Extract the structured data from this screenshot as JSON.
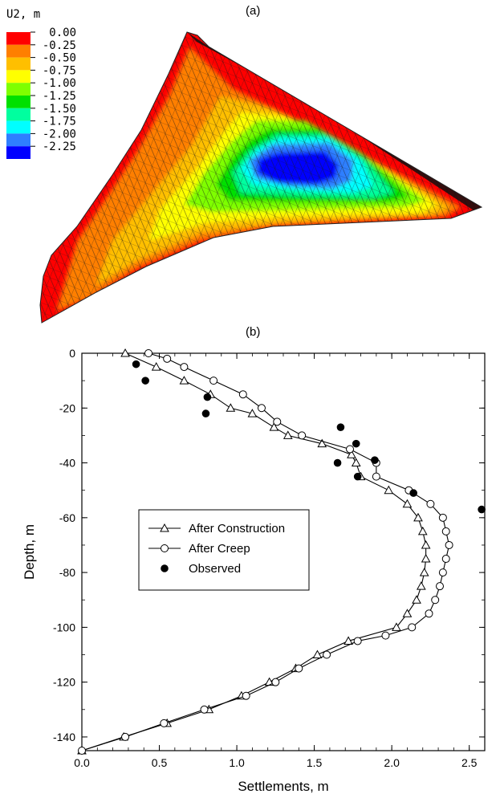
{
  "panel_a": {
    "label": "(a)",
    "legend_title": "U2, m",
    "contour_levels": [
      "0.00",
      "-0.25",
      "-0.50",
      "-0.75",
      "-1.00",
      "-1.25",
      "-1.50",
      "-1.75",
      "-2.00",
      "-2.25"
    ],
    "contour_colors": [
      "#ff0000",
      "#ff7f00",
      "#ffbf00",
      "#ffff00",
      "#7fff00",
      "#00e000",
      "#00ff9f",
      "#00ffff",
      "#2f7fff",
      "#0000ff"
    ]
  },
  "panel_b": {
    "label": "(b)"
  },
  "chart_data": {
    "type": "line",
    "xlabel": "Settlements, m",
    "ylabel": "Depth, m",
    "xlim": [
      0.0,
      2.6
    ],
    "ylim": [
      -145,
      0
    ],
    "x_ticks": [
      "0.0",
      "0.5",
      "1.0",
      "1.5",
      "2.0",
      "2.5"
    ],
    "y_ticks": [
      "0",
      "-20",
      "-40",
      "-60",
      "-80",
      "-100",
      "-120",
      "-140"
    ],
    "legend_position": "center-left",
    "series": [
      {
        "name": "After Construction",
        "marker": "open-triangle",
        "points": [
          [
            0.28,
            0
          ],
          [
            0.48,
            -5
          ],
          [
            0.66,
            -10
          ],
          [
            0.83,
            -15
          ],
          [
            0.96,
            -20
          ],
          [
            1.1,
            -22
          ],
          [
            1.24,
            -27
          ],
          [
            1.33,
            -30
          ],
          [
            1.55,
            -33
          ],
          [
            1.74,
            -37
          ],
          [
            1.77,
            -40
          ],
          [
            1.8,
            -45
          ],
          [
            1.98,
            -50
          ],
          [
            2.1,
            -55
          ],
          [
            2.17,
            -60
          ],
          [
            2.2,
            -65
          ],
          [
            2.22,
            -70
          ],
          [
            2.22,
            -75
          ],
          [
            2.21,
            -80
          ],
          [
            2.19,
            -85
          ],
          [
            2.16,
            -90
          ],
          [
            2.1,
            -95
          ],
          [
            2.03,
            -100
          ],
          [
            1.72,
            -105
          ],
          [
            1.52,
            -110
          ],
          [
            1.38,
            -115
          ],
          [
            1.21,
            -120
          ],
          [
            1.03,
            -125
          ],
          [
            0.82,
            -130
          ],
          [
            0.55,
            -135
          ],
          [
            0.27,
            -140
          ],
          [
            0.0,
            -145
          ]
        ]
      },
      {
        "name": "After Creep",
        "marker": "open-circle",
        "points": [
          [
            0.43,
            0
          ],
          [
            0.55,
            -2
          ],
          [
            0.66,
            -5
          ],
          [
            0.85,
            -10
          ],
          [
            1.04,
            -15
          ],
          [
            1.16,
            -20
          ],
          [
            1.26,
            -25
          ],
          [
            1.42,
            -30
          ],
          [
            1.73,
            -35
          ],
          [
            1.9,
            -40
          ],
          [
            1.9,
            -45
          ],
          [
            2.11,
            -50
          ],
          [
            2.25,
            -55
          ],
          [
            2.33,
            -60
          ],
          [
            2.35,
            -65
          ],
          [
            2.37,
            -70
          ],
          [
            2.35,
            -75
          ],
          [
            2.33,
            -80
          ],
          [
            2.31,
            -85
          ],
          [
            2.28,
            -90
          ],
          [
            2.24,
            -95
          ],
          [
            2.13,
            -100
          ],
          [
            1.96,
            -103
          ],
          [
            1.78,
            -105
          ],
          [
            1.58,
            -110
          ],
          [
            1.4,
            -115
          ],
          [
            1.25,
            -120
          ],
          [
            1.06,
            -125
          ],
          [
            0.79,
            -130
          ],
          [
            0.53,
            -135
          ],
          [
            0.28,
            -140
          ],
          [
            0.0,
            -145
          ]
        ]
      },
      {
        "name": "Observed",
        "marker": "filled-circle",
        "points": [
          [
            0.35,
            -4
          ],
          [
            0.41,
            -10
          ],
          [
            0.81,
            -16
          ],
          [
            0.8,
            -22
          ],
          [
            1.67,
            -27
          ],
          [
            1.77,
            -33
          ],
          [
            1.89,
            -39
          ],
          [
            1.65,
            -40
          ],
          [
            1.78,
            -45
          ],
          [
            2.14,
            -51
          ],
          [
            2.58,
            -57
          ]
        ]
      }
    ]
  }
}
